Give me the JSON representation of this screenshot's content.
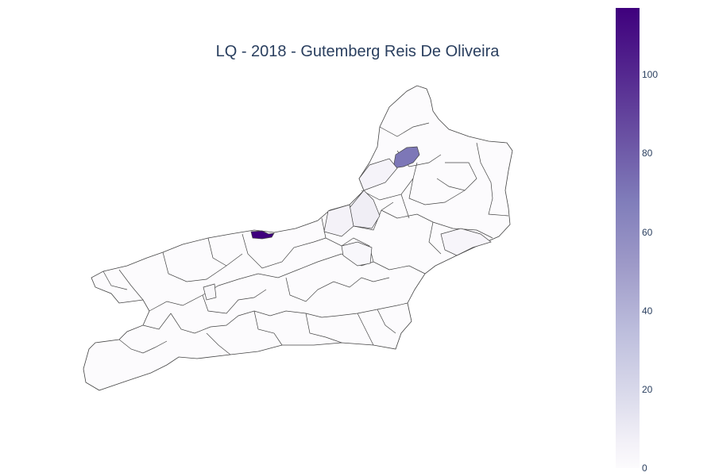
{
  "title": "LQ - 2018 - Gutemberg Reis De Oliveira",
  "colorscale": [
    "#fcfbfd",
    "#efedf5",
    "#dadaeb",
    "#bcbddc",
    "#9e9ac8",
    "#807dba",
    "#6a51a3",
    "#54278f",
    "#3f007d"
  ],
  "colorbar": {
    "min": 0,
    "max": 117,
    "ticks": [
      {
        "label": "100",
        "value": 100
      },
      {
        "label": "80",
        "value": 80
      },
      {
        "label": "60",
        "value": 60
      },
      {
        "label": "40",
        "value": 40
      },
      {
        "label": "20",
        "value": 20
      },
      {
        "label": "0",
        "value": 0
      }
    ]
  },
  "regions": [
    {
      "value": 117
    },
    {
      "value": 75
    },
    {
      "value": 14
    },
    {
      "value": 9
    },
    {
      "value": 8
    },
    {
      "value": 6
    },
    {
      "value": 4
    },
    {
      "value": 3
    }
  ],
  "outline_color": "#444444"
}
